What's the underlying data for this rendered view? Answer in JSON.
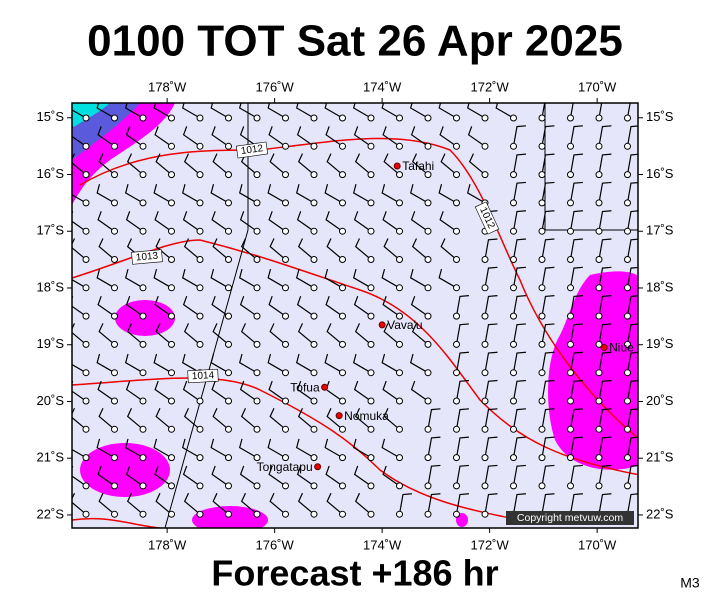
{
  "title": "0100 TOT Sat 26 Apr 2025",
  "footer": "Forecast +186 hr",
  "model": "M3",
  "copyright": "Copyright metvuw.com",
  "map": {
    "xlim": [
      -179.77,
      -169.24
    ],
    "ylim": [
      -22.23,
      -14.74
    ],
    "xticks": [
      {
        "value": -178,
        "label": "178˚W"
      },
      {
        "value": -176,
        "label": "176˚W"
      },
      {
        "value": -174,
        "label": "174˚W"
      },
      {
        "value": -172,
        "label": "172˚W"
      },
      {
        "value": -170,
        "label": "170˚W"
      }
    ],
    "yticks": [
      {
        "value": -15,
        "label": "15˚S"
      },
      {
        "value": -16,
        "label": "16˚S"
      },
      {
        "value": -17,
        "label": "17˚S"
      },
      {
        "value": -18,
        "label": "18˚S"
      },
      {
        "value": -19,
        "label": "19˚S"
      },
      {
        "value": -20,
        "label": "20˚S"
      },
      {
        "value": -21,
        "label": "21˚S"
      },
      {
        "value": -22,
        "label": "22˚S"
      }
    ],
    "places": [
      {
        "name": "Tafahi",
        "lat": -15.85,
        "lon": -173.72
      },
      {
        "name": "Vava'u",
        "lat": -18.65,
        "lon": -174.0
      },
      {
        "name": "Niue",
        "lat": -19.05,
        "lon": -169.87
      },
      {
        "name": "Tofua",
        "lat": -19.75,
        "lon": -175.07
      },
      {
        "name": "Nomuka",
        "lat": -20.25,
        "lon": -174.8
      },
      {
        "name": "Tongatapu",
        "lat": -21.15,
        "lon": -175.2
      }
    ],
    "isobar_labels": [
      "1012",
      "1012",
      "1013",
      "1014"
    ]
  }
}
